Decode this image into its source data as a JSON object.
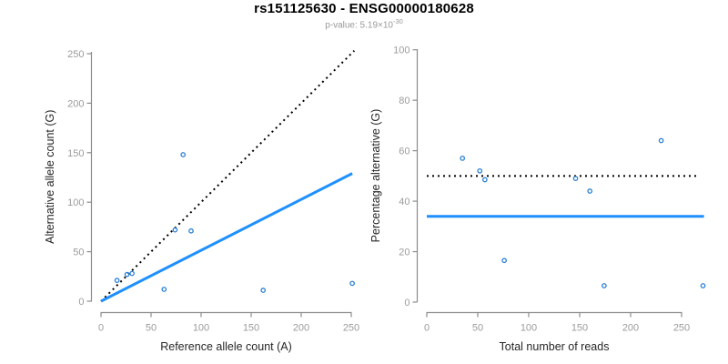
{
  "header": {
    "title": "rs151125630 - ENSG00000180628",
    "pvalue_label": "p-value: 5.19×10",
    "pvalue_exponent": "-30"
  },
  "style": {
    "line_blue": "#1E90FF",
    "point_blue": "#2B80D4",
    "dotted_black": "#000000",
    "axis_gray": "#8C8C8C",
    "tick_label_gray": "#9B9B9B",
    "axis_title_color": "#262626",
    "subtitle_gray": "#999999",
    "title_color": "#000000",
    "background": "#FFFFFF"
  },
  "chart_data": [
    {
      "name": "allele-count-scatter",
      "type": "scatter",
      "title": "",
      "xlabel": "Reference allele count (A)",
      "ylabel": "Alternative allele count (G)",
      "xlim": [
        0,
        253
      ],
      "ylim": [
        0,
        253
      ],
      "xticks": [
        0,
        50,
        100,
        150,
        200,
        250
      ],
      "yticks": [
        0,
        50,
        100,
        150,
        200,
        250
      ],
      "grid": false,
      "legend": null,
      "points": [
        [
          16,
          21
        ],
        [
          26,
          27
        ],
        [
          31,
          28
        ],
        [
          63,
          12
        ],
        [
          74,
          72
        ],
        [
          82,
          148
        ],
        [
          90,
          71
        ],
        [
          162,
          11
        ],
        [
          251,
          18
        ]
      ],
      "lines": [
        {
          "name": "identity-line",
          "style": "dotted",
          "color_key": "dotted_black",
          "x1": 0,
          "y1": 0,
          "x2": 253,
          "y2": 253
        },
        {
          "name": "fit-line",
          "style": "solid",
          "color_key": "line_blue",
          "x1": 0,
          "y1": 0,
          "x2": 251,
          "y2": 129
        }
      ]
    },
    {
      "name": "percentage-alternative-scatter",
      "type": "scatter",
      "title": "",
      "xlabel": "Total number of reads",
      "ylabel": "Percentage alternative (G)",
      "xlim": [
        0,
        272
      ],
      "ylim": [
        0,
        100
      ],
      "xticks": [
        0,
        50,
        100,
        150,
        200,
        250
      ],
      "yticks": [
        0,
        20,
        40,
        60,
        80,
        100
      ],
      "grid": false,
      "legend": null,
      "points": [
        [
          35,
          57
        ],
        [
          52,
          52
        ],
        [
          57,
          48.5
        ],
        [
          76,
          16.5
        ],
        [
          146,
          49
        ],
        [
          160,
          44
        ],
        [
          174,
          6.5
        ],
        [
          230,
          64
        ],
        [
          271,
          6.5
        ]
      ],
      "lines": [
        {
          "name": "expected-50pct-line",
          "style": "dotted",
          "color_key": "dotted_black",
          "x1": 0,
          "y1": 50,
          "x2": 266,
          "y2": 50
        },
        {
          "name": "observed-34pct-line",
          "style": "solid",
          "color_key": "line_blue",
          "x1": 0,
          "y1": 34,
          "x2": 272,
          "y2": 34
        }
      ]
    }
  ]
}
